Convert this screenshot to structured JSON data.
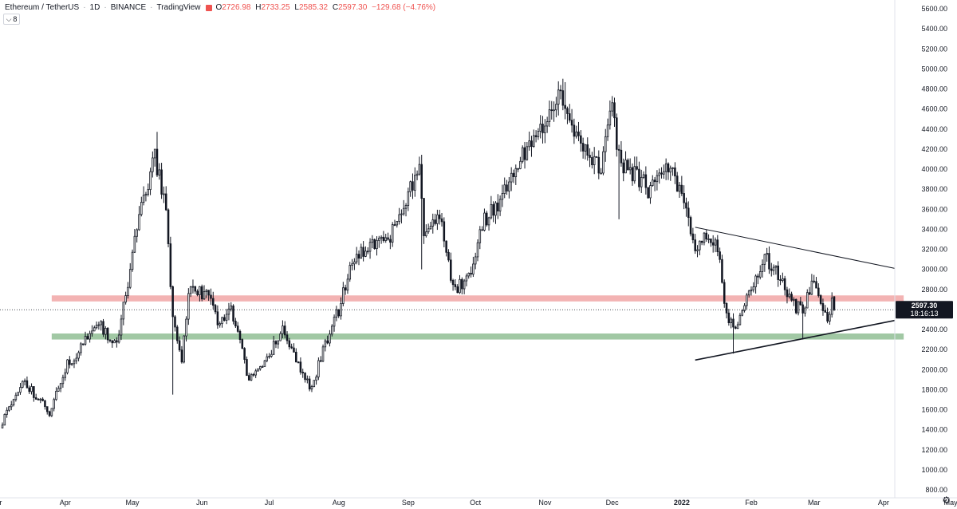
{
  "header": {
    "symbol": "Ethereum / TetherUS",
    "interval": "1D",
    "exchange": "BINANCE",
    "source": "TradingView",
    "open_label": "O",
    "open": "2726.98",
    "high_label": "H",
    "high": "2733.25",
    "low_label": "L",
    "low": "2585.32",
    "close_label": "C",
    "close": "2597.30",
    "change": "−129.68 (−4.76%)",
    "indicator_count": "8"
  },
  "colors": {
    "up": "#131722",
    "down": "#131722",
    "resistance_zone": "#ef9a9a",
    "support_zone": "#81b585",
    "price_line": "#131722",
    "header_values": "#ef5350"
  },
  "price_badge": {
    "price": "2597.30",
    "countdown": "18:16:13"
  },
  "chart_data": {
    "type": "candlestick",
    "symbol": "ETH/USDT",
    "timeframe": "1D",
    "ylim": [
      780,
      5720
    ],
    "y_ticks": [
      "5600.00",
      "5400.00",
      "5200.00",
      "5000.00",
      "4800.00",
      "4600.00",
      "4400.00",
      "4200.00",
      "4000.00",
      "3800.00",
      "3600.00",
      "3400.00",
      "3200.00",
      "3000.00",
      "2800.00",
      "2600.00",
      "2400.00",
      "2200.00",
      "2000.00",
      "1800.00",
      "1600.00",
      "1400.00",
      "1200.00",
      "1000.00",
      "800.00"
    ],
    "x_ticks": [
      {
        "label": "Mar",
        "date": "2021-03-01",
        "bold": false
      },
      {
        "label": "Apr",
        "date": "2021-04-01",
        "bold": false
      },
      {
        "label": "May",
        "date": "2021-05-01",
        "bold": false
      },
      {
        "label": "Jun",
        "date": "2021-06-01",
        "bold": false
      },
      {
        "label": "Jul",
        "date": "2021-07-01",
        "bold": false
      },
      {
        "label": "Aug",
        "date": "2021-08-01",
        "bold": false
      },
      {
        "label": "Sep",
        "date": "2021-09-01",
        "bold": false
      },
      {
        "label": "Oct",
        "date": "2021-10-01",
        "bold": false
      },
      {
        "label": "Nov",
        "date": "2021-11-01",
        "bold": false
      },
      {
        "label": "Dec",
        "date": "2021-12-01",
        "bold": false
      },
      {
        "label": "2022",
        "date": "2022-01-01",
        "bold": true
      },
      {
        "label": "Feb",
        "date": "2022-02-01",
        "bold": false
      },
      {
        "label": "Mar",
        "date": "2022-03-01",
        "bold": false
      },
      {
        "label": "Apr",
        "date": "2022-04-01",
        "bold": false
      },
      {
        "label": "May",
        "date": "2022-05-01",
        "bold": false
      }
    ],
    "anchors": [
      {
        "date": "2021-03-04",
        "price": 1480
      },
      {
        "date": "2021-03-13",
        "price": 1900
      },
      {
        "date": "2021-03-25",
        "price": 1570
      },
      {
        "date": "2021-04-02",
        "price": 2050
      },
      {
        "date": "2021-04-16",
        "price": 2450
      },
      {
        "date": "2021-04-24",
        "price": 2250
      },
      {
        "date": "2021-05-03",
        "price": 3400
      },
      {
        "date": "2021-05-11",
        "price": 4150
      },
      {
        "date": "2021-05-16",
        "price": 3600
      },
      {
        "date": "2021-05-19",
        "price": 2500
      },
      {
        "date": "2021-05-23",
        "price": 2100
      },
      {
        "date": "2021-05-26",
        "price": 2800
      },
      {
        "date": "2021-06-03",
        "price": 2750
      },
      {
        "date": "2021-06-08",
        "price": 2500
      },
      {
        "date": "2021-06-14",
        "price": 2600
      },
      {
        "date": "2021-06-22",
        "price": 1900
      },
      {
        "date": "2021-07-02",
        "price": 2200
      },
      {
        "date": "2021-07-07",
        "price": 2400
      },
      {
        "date": "2021-07-15",
        "price": 2000
      },
      {
        "date": "2021-07-20",
        "price": 1800
      },
      {
        "date": "2021-07-25",
        "price": 2200
      },
      {
        "date": "2021-08-01",
        "price": 2600
      },
      {
        "date": "2021-08-07",
        "price": 3100
      },
      {
        "date": "2021-08-14",
        "price": 3250
      },
      {
        "date": "2021-08-23",
        "price": 3300
      },
      {
        "date": "2021-09-02",
        "price": 3800
      },
      {
        "date": "2021-09-06",
        "price": 3950
      },
      {
        "date": "2021-09-08",
        "price": 3400
      },
      {
        "date": "2021-09-15",
        "price": 3550
      },
      {
        "date": "2021-09-21",
        "price": 2800
      },
      {
        "date": "2021-09-28",
        "price": 2900
      },
      {
        "date": "2021-10-04",
        "price": 3450
      },
      {
        "date": "2021-10-15",
        "price": 3800
      },
      {
        "date": "2021-10-21",
        "price": 4150
      },
      {
        "date": "2021-10-28",
        "price": 4300
      },
      {
        "date": "2021-11-03",
        "price": 4550
      },
      {
        "date": "2021-11-09",
        "price": 4750
      },
      {
        "date": "2021-11-16",
        "price": 4300
      },
      {
        "date": "2021-11-22",
        "price": 4100
      },
      {
        "date": "2021-11-26",
        "price": 4000
      },
      {
        "date": "2021-12-01",
        "price": 4600
      },
      {
        "date": "2021-12-04",
        "price": 4100
      },
      {
        "date": "2021-12-11",
        "price": 3950
      },
      {
        "date": "2021-12-17",
        "price": 3800
      },
      {
        "date": "2021-12-27",
        "price": 4050
      },
      {
        "date": "2022-01-01",
        "price": 3700
      },
      {
        "date": "2022-01-07",
        "price": 3200
      },
      {
        "date": "2022-01-12",
        "price": 3350
      },
      {
        "date": "2022-01-17",
        "price": 3200
      },
      {
        "date": "2022-01-21",
        "price": 2550
      },
      {
        "date": "2022-01-24",
        "price": 2400
      },
      {
        "date": "2022-02-01",
        "price": 2800
      },
      {
        "date": "2022-02-07",
        "price": 3100
      },
      {
        "date": "2022-02-11",
        "price": 3050
      },
      {
        "date": "2022-02-19",
        "price": 2650
      },
      {
        "date": "2022-02-24",
        "price": 2600
      },
      {
        "date": "2022-03-01",
        "price": 2950
      },
      {
        "date": "2022-03-04",
        "price": 2650
      },
      {
        "date": "2022-03-07",
        "price": 2500
      },
      {
        "date": "2022-03-09",
        "price": 2726.98
      }
    ],
    "last_candle": {
      "date": "2022-03-10",
      "open": 2726.98,
      "high": 2733.25,
      "low": 2585.32,
      "close": 2597.3
    },
    "special_wicks": [
      {
        "date": "2021-05-12",
        "high": 4372
      },
      {
        "date": "2021-05-19",
        "low": 1750
      },
      {
        "date": "2021-09-07",
        "low": 3000
      },
      {
        "date": "2021-11-10",
        "high": 4868
      },
      {
        "date": "2021-12-04",
        "low": 3500
      },
      {
        "date": "2022-01-24",
        "low": 2160
      },
      {
        "date": "2022-02-24",
        "low": 2300
      }
    ],
    "zones": [
      {
        "name": "resistance",
        "low": 2680,
        "high": 2740,
        "from": "2021-03-26",
        "to": "2022-04-10"
      },
      {
        "name": "support",
        "low": 2300,
        "high": 2360,
        "from": "2021-03-26",
        "to": "2022-04-10"
      }
    ],
    "trendlines": [
      {
        "name": "descending",
        "from": {
          "date": "2022-01-07",
          "price": 3420
        },
        "to": {
          "date": "2022-04-06",
          "price": 3010
        }
      },
      {
        "name": "ascending",
        "from": {
          "date": "2022-01-07",
          "price": 2095
        },
        "to": {
          "date": "2022-04-06",
          "price": 2490
        }
      }
    ],
    "last_price": 2597.3
  }
}
